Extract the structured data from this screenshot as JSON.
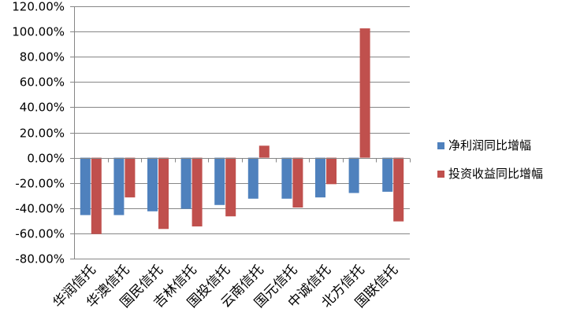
{
  "chart_data": {
    "type": "bar",
    "title": "",
    "xlabel": "",
    "ylabel": "",
    "ylim": [
      -80,
      120
    ],
    "yticks": [
      120,
      100,
      80,
      60,
      40,
      20,
      0,
      -20,
      -40,
      -60,
      -80
    ],
    "ytick_labels": [
      "120.00%",
      "100.00%",
      "80.00%",
      "60.00%",
      "40.00%",
      "20.00%",
      "0.00%",
      "-20.00%",
      "-40.00%",
      "-60.00%",
      "-80.00%"
    ],
    "y_unit": "%",
    "grid": true,
    "legend_position": "right",
    "categories": [
      "华润信托",
      "华澳信托",
      "国民信托",
      "吉林信托",
      "国投信托",
      "云南信托",
      "国元信托",
      "中诚信托",
      "北方信托",
      "国联信托"
    ],
    "series": [
      {
        "name": "净利润同比增幅",
        "color": "#4F81BD",
        "values": [
          -45.5,
          -45.5,
          -42.5,
          -40.5,
          -37.5,
          -32.5,
          -32.5,
          -31.5,
          -28.0,
          -27.0
        ]
      },
      {
        "name": "投资收益同比增幅",
        "color": "#C0504D",
        "values": [
          -60.5,
          -31.5,
          -56.5,
          -54.5,
          -46.5,
          9.5,
          -39.5,
          -21.0,
          102.5,
          -50.5
        ]
      }
    ]
  }
}
